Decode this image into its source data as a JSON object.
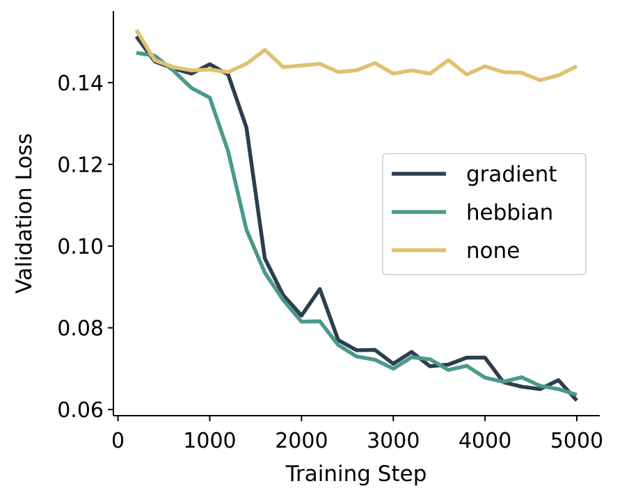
{
  "chart_data": {
    "type": "line",
    "title": "",
    "xlabel": "Training Step",
    "ylabel": "Validation Loss",
    "xlim": [
      -50,
      5250
    ],
    "ylim": [
      0.0585,
      0.1575
    ],
    "xticks": [
      0,
      1000,
      2000,
      3000,
      4000,
      5000
    ],
    "xtick_labels": [
      "0",
      "1000",
      "2000",
      "3000",
      "4000",
      "5000"
    ],
    "yticks": [
      0.06,
      0.08,
      0.1,
      0.12,
      0.14
    ],
    "ytick_labels": [
      "0.06",
      "0.08",
      "0.10",
      "0.12",
      "0.14"
    ],
    "grid": false,
    "legend_position": "center-right",
    "x": [
      200,
      400,
      600,
      800,
      1000,
      1200,
      1400,
      1600,
      1800,
      2000,
      2200,
      2400,
      2600,
      2800,
      3000,
      3200,
      3400,
      3600,
      3800,
      4000,
      4200,
      4400,
      4600,
      4800,
      5000
    ],
    "series": [
      {
        "name": "gradient",
        "color": "#2c3e4f",
        "values": [
          0.1513,
          0.1452,
          0.1435,
          0.1422,
          0.1445,
          0.142,
          0.129,
          0.097,
          0.088,
          0.083,
          0.0895,
          0.077,
          0.0745,
          0.0746,
          0.0712,
          0.0741,
          0.0706,
          0.071,
          0.0727,
          0.0727,
          0.0667,
          0.0656,
          0.065,
          0.0672,
          0.0622
        ]
      },
      {
        "name": "hebbian",
        "color": "#4b998b",
        "values": [
          0.1473,
          0.1466,
          0.143,
          0.1387,
          0.1363,
          0.1232,
          0.104,
          0.0935,
          0.0868,
          0.0815,
          0.0816,
          0.0758,
          0.073,
          0.0722,
          0.07,
          0.0728,
          0.0723,
          0.0697,
          0.0707,
          0.0678,
          0.0668,
          0.0679,
          0.0658,
          0.065,
          0.0636
        ]
      },
      {
        "name": "none",
        "color": "#e0c171",
        "values": [
          0.1529,
          0.1455,
          0.1438,
          0.143,
          0.1432,
          0.1426,
          0.1446,
          0.148,
          0.1438,
          0.1442,
          0.1446,
          0.1426,
          0.143,
          0.1448,
          0.1422,
          0.143,
          0.1422,
          0.1455,
          0.142,
          0.144,
          0.1426,
          0.1424,
          0.1406,
          0.1418,
          0.144
        ]
      }
    ]
  }
}
